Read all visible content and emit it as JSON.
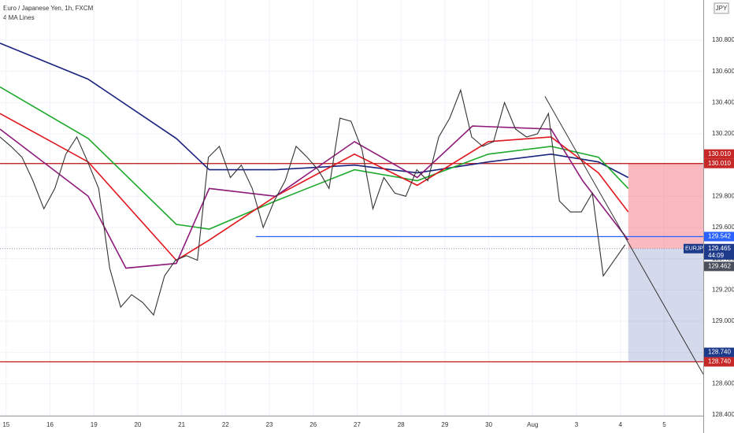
{
  "chart_data": {
    "type": "line",
    "title": "Euro / Japanese Yen, 1h, FXCM",
    "subtitle": "4 MA Lines",
    "currency_badge": "JPY",
    "color": "#333333",
    "x": [
      -0.14,
      0.11,
      0.36,
      0.61,
      0.86,
      1.11,
      1.36,
      1.61,
      1.86,
      2.11,
      2.36,
      2.61,
      2.86,
      3.11,
      3.36,
      3.61,
      3.86,
      4.11,
      4.36,
      4.61,
      4.86,
      5.11,
      5.36,
      5.61,
      5.86,
      6.11,
      6.36,
      6.61,
      6.86,
      7.11,
      7.36,
      7.61,
      7.86,
      8.11,
      8.36,
      8.61,
      8.86,
      9.11,
      9.36,
      9.61,
      9.86,
      10.11,
      10.36,
      10.61,
      10.86,
      11.11,
      11.36,
      11.61,
      11.86,
      12.11,
      12.36,
      12.61,
      12.86,
      13.11,
      13.36,
      13.61,
      13.86,
      14.11
    ],
    "values": [
      130.18,
      130.12,
      130.05,
      129.9,
      129.72,
      129.85,
      130.07,
      130.18,
      130.02,
      129.85,
      129.34,
      129.09,
      129.17,
      129.12,
      129.04,
      129.29,
      129.39,
      129.42,
      129.39,
      130.05,
      130.12,
      129.92,
      130.0,
      129.85,
      129.6,
      129.77,
      129.9,
      130.12,
      130.05,
      129.97,
      129.85,
      130.3,
      130.28,
      130.1,
      129.72,
      129.92,
      129.82,
      129.8,
      129.97,
      129.9,
      130.18,
      130.3,
      130.48,
      130.18,
      130.12,
      130.15,
      130.4,
      130.23,
      130.18,
      130.2,
      130.33,
      129.77,
      129.7,
      129.7,
      129.82,
      129.29,
      129.39,
      129.49
    ],
    "ma_lines": [
      {
        "color": "#1a237e",
        "x": [
          -0.14,
          1.87,
          3.88,
          4.63,
          6.14,
          7.94,
          9.37,
          10.99,
          12.42,
          13.5,
          14.18
        ],
        "values": [
          130.78,
          130.55,
          130.17,
          129.97,
          129.97,
          130.0,
          129.95,
          130.02,
          130.07,
          130.02,
          129.92
        ]
      },
      {
        "color": "#1eaa2c",
        "x": [
          -0.14,
          1.87,
          3.88,
          4.63,
          6.14,
          7.94,
          9.37,
          10.99,
          12.42,
          13.5,
          14.18
        ],
        "values": [
          130.5,
          130.17,
          129.62,
          129.59,
          129.77,
          129.97,
          129.9,
          130.07,
          130.12,
          130.05,
          129.85
        ]
      },
      {
        "color": "#e0161d",
        "x": [
          -0.14,
          1.87,
          3.88,
          4.63,
          6.14,
          7.94,
          9.37,
          10.99,
          12.42,
          13.5,
          14.18
        ],
        "values": [
          130.33,
          130.02,
          129.39,
          129.52,
          129.8,
          130.07,
          129.87,
          130.15,
          130.18,
          129.95,
          129.7
        ]
      },
      {
        "color": "#8e1a7a",
        "x": [
          -0.14,
          1.87,
          2.73,
          3.88,
          4.63,
          6.14,
          7.94,
          9.37,
          10.63,
          12.42,
          13.14,
          14.18
        ],
        "values": [
          130.23,
          129.8,
          129.34,
          129.37,
          129.85,
          129.8,
          130.15,
          129.92,
          130.25,
          130.23,
          129.9,
          129.52
        ]
      }
    ],
    "levels": [
      {
        "value": 130.01,
        "label": "130.010",
        "color": "#c62828",
        "x_start": -0.14
      },
      {
        "value": 129.542,
        "label": "129.542",
        "color": "#2962ff",
        "x_start": 5.69
      },
      {
        "value": 128.74,
        "label": "128.740",
        "color": "#c62828",
        "x_start": -0.14
      }
    ],
    "position": {
      "x_start": 14.18,
      "entry": 129.465,
      "stop": 130.01,
      "stop_label": "130.010",
      "target": 128.74,
      "target_label": "128.740"
    },
    "trend_line": {
      "x": [
        12.28,
        15.89
      ],
      "values": [
        130.44,
        128.66
      ]
    },
    "price_tag": {
      "symbol": "EURJPY",
      "value": 129.465,
      "label": "129.465",
      "countdown": "44:09"
    },
    "last_tag": {
      "value": 129.462,
      "label": "129.462"
    },
    "xlim": [
      -0.14,
      15.89
    ],
    "ylim": [
      128.395,
      131.057
    ],
    "xticks": [
      {
        "value": 0,
        "label": "15"
      },
      {
        "value": 1,
        "label": "16"
      },
      {
        "value": 2,
        "label": "19"
      },
      {
        "value": 3,
        "label": "20"
      },
      {
        "value": 4,
        "label": "21"
      },
      {
        "value": 5,
        "label": "22"
      },
      {
        "value": 6,
        "label": "23"
      },
      {
        "value": 7,
        "label": "26"
      },
      {
        "value": 8,
        "label": "27"
      },
      {
        "value": 9,
        "label": "28"
      },
      {
        "value": 10,
        "label": "29"
      },
      {
        "value": 11,
        "label": "30"
      },
      {
        "value": 12,
        "label": "Aug"
      },
      {
        "value": 13,
        "label": "3"
      },
      {
        "value": 14,
        "label": "4"
      },
      {
        "value": 15,
        "label": "5"
      }
    ],
    "yticks": [
      {
        "value": 128.4,
        "label": "128.400"
      },
      {
        "value": 128.6,
        "label": "128.600"
      },
      {
        "value": 128.8,
        "label": "128.800"
      },
      {
        "value": 129.0,
        "label": "129.000"
      },
      {
        "value": 129.2,
        "label": "129.200"
      },
      {
        "value": 129.4,
        "label": "129.400"
      },
      {
        "value": 129.6,
        "label": "129.600"
      },
      {
        "value": 129.8,
        "label": "129.800"
      },
      {
        "value": 130.0,
        "label": "130.000"
      },
      {
        "value": 130.2,
        "label": "130.200"
      },
      {
        "value": 130.4,
        "label": "130.400"
      },
      {
        "value": 130.6,
        "label": "130.600"
      },
      {
        "value": 130.8,
        "label": "130.800"
      }
    ],
    "grid": true
  }
}
